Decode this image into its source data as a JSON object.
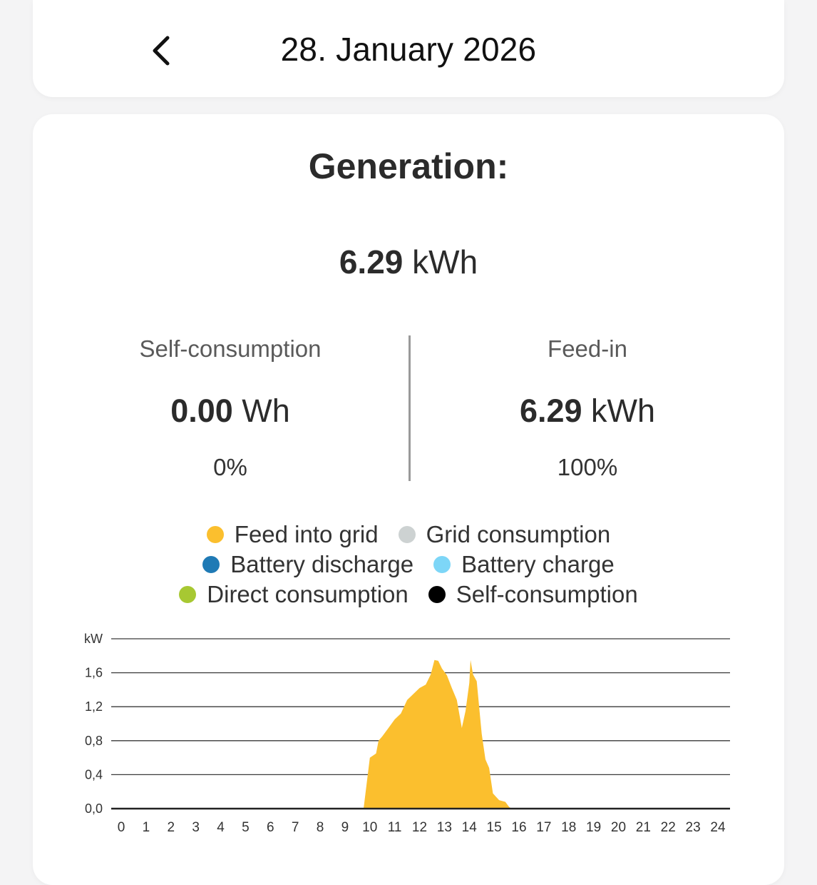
{
  "header": {
    "title": "28. January 2026",
    "back_icon": "chevron-left-icon"
  },
  "summary": {
    "title": "Generation:",
    "total_value": "6.29",
    "total_unit": "kWh",
    "self_consumption": {
      "label": "Self-consumption",
      "value": "0.00",
      "unit": "Wh",
      "percent": "0%"
    },
    "feed_in": {
      "label": "Feed-in",
      "value": "6.29",
      "unit": "kWh",
      "percent": "100%"
    }
  },
  "legend": [
    {
      "label": "Feed into grid",
      "color": "#FBBF2E"
    },
    {
      "label": "Grid consumption",
      "color": "#CDD2D2"
    },
    {
      "label": "Battery discharge",
      "color": "#1F7AB5"
    },
    {
      "label": "Battery charge",
      "color": "#7DD6F7"
    },
    {
      "label": "Direct consumption",
      "color": "#A7C832"
    },
    {
      "label": "Self-consumption",
      "color": "#000000"
    }
  ],
  "chart_data": {
    "type": "area",
    "ylabel": "kW",
    "ylim": [
      0,
      2.0
    ],
    "yticks": [
      "0,0",
      "0,4",
      "0,8",
      "1,2",
      "1,6"
    ],
    "xlim": [
      0,
      24
    ],
    "xticks": [
      "0",
      "1",
      "2",
      "3",
      "4",
      "5",
      "6",
      "7",
      "8",
      "9",
      "10",
      "11",
      "12",
      "13",
      "14",
      "15",
      "16",
      "17",
      "18",
      "19",
      "20",
      "21",
      "22",
      "23",
      "24"
    ],
    "grid": true,
    "series": [
      {
        "name": "Feed into grid",
        "color": "#FBBF2E",
        "points": [
          [
            0,
            0
          ],
          [
            9.75,
            0
          ],
          [
            10.0,
            0.6
          ],
          [
            10.25,
            0.65
          ],
          [
            10.35,
            0.8
          ],
          [
            10.5,
            0.85
          ],
          [
            10.75,
            0.95
          ],
          [
            11.0,
            1.05
          ],
          [
            11.25,
            1.12
          ],
          [
            11.5,
            1.28
          ],
          [
            11.75,
            1.35
          ],
          [
            12.0,
            1.42
          ],
          [
            12.25,
            1.46
          ],
          [
            12.45,
            1.58
          ],
          [
            12.6,
            1.75
          ],
          [
            12.75,
            1.74
          ],
          [
            12.9,
            1.65
          ],
          [
            13.1,
            1.57
          ],
          [
            13.3,
            1.42
          ],
          [
            13.5,
            1.28
          ],
          [
            13.7,
            0.95
          ],
          [
            13.85,
            1.15
          ],
          [
            14.0,
            1.48
          ],
          [
            14.05,
            1.75
          ],
          [
            14.15,
            1.58
          ],
          [
            14.3,
            1.5
          ],
          [
            14.5,
            0.88
          ],
          [
            14.65,
            0.58
          ],
          [
            14.8,
            0.48
          ],
          [
            14.95,
            0.18
          ],
          [
            15.2,
            0.1
          ],
          [
            15.45,
            0.08
          ],
          [
            15.6,
            0.02
          ],
          [
            15.7,
            0
          ],
          [
            24,
            0
          ]
        ]
      }
    ]
  }
}
